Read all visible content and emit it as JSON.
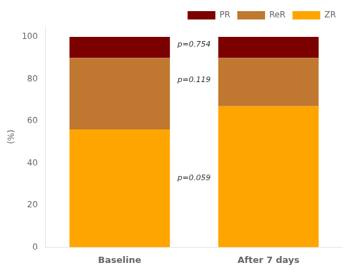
{
  "chart_data": {
    "type": "bar",
    "stacked": true,
    "categories": [
      "Baseline",
      "After 7 days"
    ],
    "series": [
      {
        "name": "ZR",
        "color": "#FFA500",
        "values": [
          56,
          67
        ]
      },
      {
        "name": "ReR",
        "color": "#C07830",
        "values": [
          34,
          23
        ]
      },
      {
        "name": "PR",
        "color": "#7B0000",
        "values": [
          10,
          10
        ]
      }
    ],
    "ylabel": "(%)",
    "ylim": [
      0,
      105
    ],
    "yticks": [
      0,
      20,
      40,
      60,
      80,
      100
    ],
    "grid": false,
    "legend": "upper right",
    "annotations": [
      {
        "text": "p=0.754",
        "y": 96.5
      },
      {
        "text": "p=0.119",
        "y": 79.5
      },
      {
        "text": "p=0.059",
        "y": 33
      }
    ]
  }
}
